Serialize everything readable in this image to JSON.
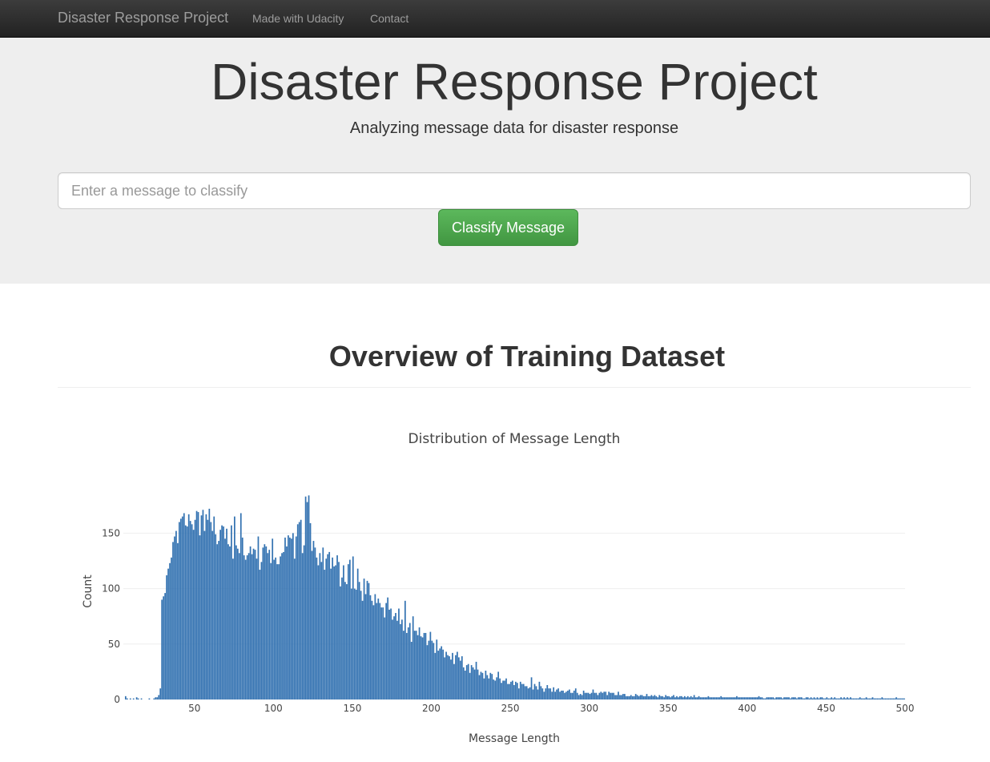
{
  "navbar": {
    "brand": "Disaster Response Project",
    "links": [
      "Made with Udacity",
      "Contact"
    ]
  },
  "hero": {
    "title": "Disaster Response Project",
    "subtitle": "Analyzing message data for disaster response",
    "input_placeholder": "Enter a message to classify",
    "input_value": "",
    "button_label": "Classify Message"
  },
  "overview": {
    "heading": "Overview of Training Dataset"
  },
  "colors": {
    "bar": "#3372b1",
    "grid": "#eeeeee",
    "button": "#5cb85c"
  },
  "chart_data": {
    "type": "bar",
    "title": "Distribution of Message Length",
    "xlabel": "Message Length",
    "ylabel": "Count",
    "xlim": [
      5,
      500
    ],
    "ylim": [
      0,
      190
    ],
    "x_ticks": [
      50,
      100,
      150,
      200,
      250,
      300,
      350,
      400,
      450,
      500
    ],
    "y_ticks": [
      0,
      50,
      100,
      150
    ],
    "bin_width": 1,
    "x_start": 5,
    "values": [
      0,
      3,
      1,
      0,
      1,
      0,
      1,
      0,
      2,
      1,
      0,
      1,
      0,
      0,
      0,
      0,
      1,
      0,
      0,
      1,
      2,
      2,
      4,
      10,
      90,
      93,
      96,
      112,
      118,
      123,
      128,
      142,
      147,
      152,
      141,
      160,
      163,
      165,
      168,
      157,
      156,
      167,
      161,
      158,
      153,
      162,
      170,
      169,
      148,
      166,
      171,
      152,
      167,
      162,
      172,
      160,
      152,
      165,
      149,
      140,
      143,
      153,
      157,
      156,
      145,
      154,
      140,
      138,
      157,
      127,
      165,
      139,
      136,
      132,
      168,
      146,
      130,
      126,
      130,
      132,
      138,
      131,
      136,
      135,
      127,
      147,
      117,
      124,
      137,
      140,
      138,
      132,
      135,
      123,
      145,
      126,
      128,
      122,
      122,
      129,
      132,
      133,
      146,
      138,
      148,
      146,
      145,
      150,
      127,
      147,
      158,
      160,
      162,
      132,
      139,
      183,
      178,
      184,
      159,
      134,
      143,
      137,
      128,
      121,
      132,
      124,
      137,
      117,
      127,
      131,
      133,
      118,
      128,
      120,
      121,
      130,
      124,
      102,
      110,
      121,
      106,
      104,
      122,
      126,
      100,
      129,
      100,
      99,
      118,
      106,
      98,
      89,
      109,
      95,
      107,
      105,
      94,
      89,
      85,
      95,
      87,
      91,
      87,
      83,
      83,
      74,
      87,
      92,
      81,
      82,
      72,
      75,
      78,
      71,
      82,
      68,
      72,
      62,
      89,
      60,
      65,
      69,
      52,
      75,
      62,
      62,
      58,
      65,
      57,
      56,
      60,
      60,
      49,
      53,
      61,
      53,
      51,
      42,
      54,
      44,
      46,
      48,
      45,
      38,
      43,
      40,
      39,
      36,
      42,
      32,
      40,
      43,
      38,
      35,
      39,
      29,
      26,
      31,
      32,
      24,
      31,
      29,
      27,
      34,
      27,
      22,
      25,
      24,
      19,
      26,
      22,
      19,
      24,
      23,
      18,
      17,
      20,
      25,
      19,
      15,
      17,
      17,
      19,
      14,
      14,
      16,
      17,
      13,
      16,
      15,
      10,
      16,
      14,
      14,
      12,
      12,
      10,
      11,
      20,
      9,
      14,
      12,
      9,
      16,
      12,
      10,
      7,
      10,
      13,
      10,
      10,
      7,
      11,
      7,
      9,
      10,
      7,
      8,
      8,
      6,
      7,
      8,
      9,
      6,
      6,
      8,
      10,
      6,
      4,
      5,
      4,
      8,
      6,
      6,
      6,
      5,
      6,
      9,
      6,
      6,
      4,
      6,
      7,
      6,
      7,
      7,
      4,
      7,
      6,
      6,
      6,
      4,
      4,
      7,
      4,
      4,
      5,
      5,
      3,
      3,
      3,
      4,
      3,
      3,
      5,
      4,
      3,
      4,
      4,
      3,
      3,
      5,
      3,
      3,
      4,
      3,
      4,
      3,
      2,
      4,
      3,
      3,
      2,
      4,
      3,
      3,
      2,
      3,
      4,
      2,
      3,
      2,
      3,
      3,
      2,
      3,
      2,
      3,
      2,
      3,
      2,
      4,
      2,
      2,
      3,
      2,
      2,
      2,
      2,
      2,
      3,
      2,
      2,
      2,
      2,
      2,
      2,
      2,
      3,
      2,
      2,
      2,
      2,
      2,
      2,
      2,
      2,
      2,
      3,
      2,
      2,
      2,
      2,
      2,
      2,
      2,
      2,
      2,
      2,
      2,
      2,
      2,
      3,
      2,
      2,
      1,
      1,
      2,
      2,
      2,
      2,
      2,
      1,
      2,
      2,
      2,
      2,
      1,
      2,
      2,
      2,
      2,
      1,
      2,
      2,
      2,
      1,
      2,
      2,
      2,
      1,
      1,
      2,
      2,
      1,
      2,
      1,
      2,
      1,
      2,
      1,
      2,
      2,
      1,
      1,
      2,
      1,
      1,
      2,
      1,
      2,
      1,
      1,
      1,
      2,
      1,
      2,
      1,
      2,
      1,
      2,
      1,
      1,
      1,
      1,
      1,
      2,
      1,
      1,
      1,
      2,
      1,
      1,
      1,
      2,
      1,
      1,
      1,
      1,
      1,
      2,
      1,
      1,
      1,
      1,
      1,
      1,
      1,
      1,
      2,
      1,
      1,
      1,
      1,
      1
    ]
  }
}
